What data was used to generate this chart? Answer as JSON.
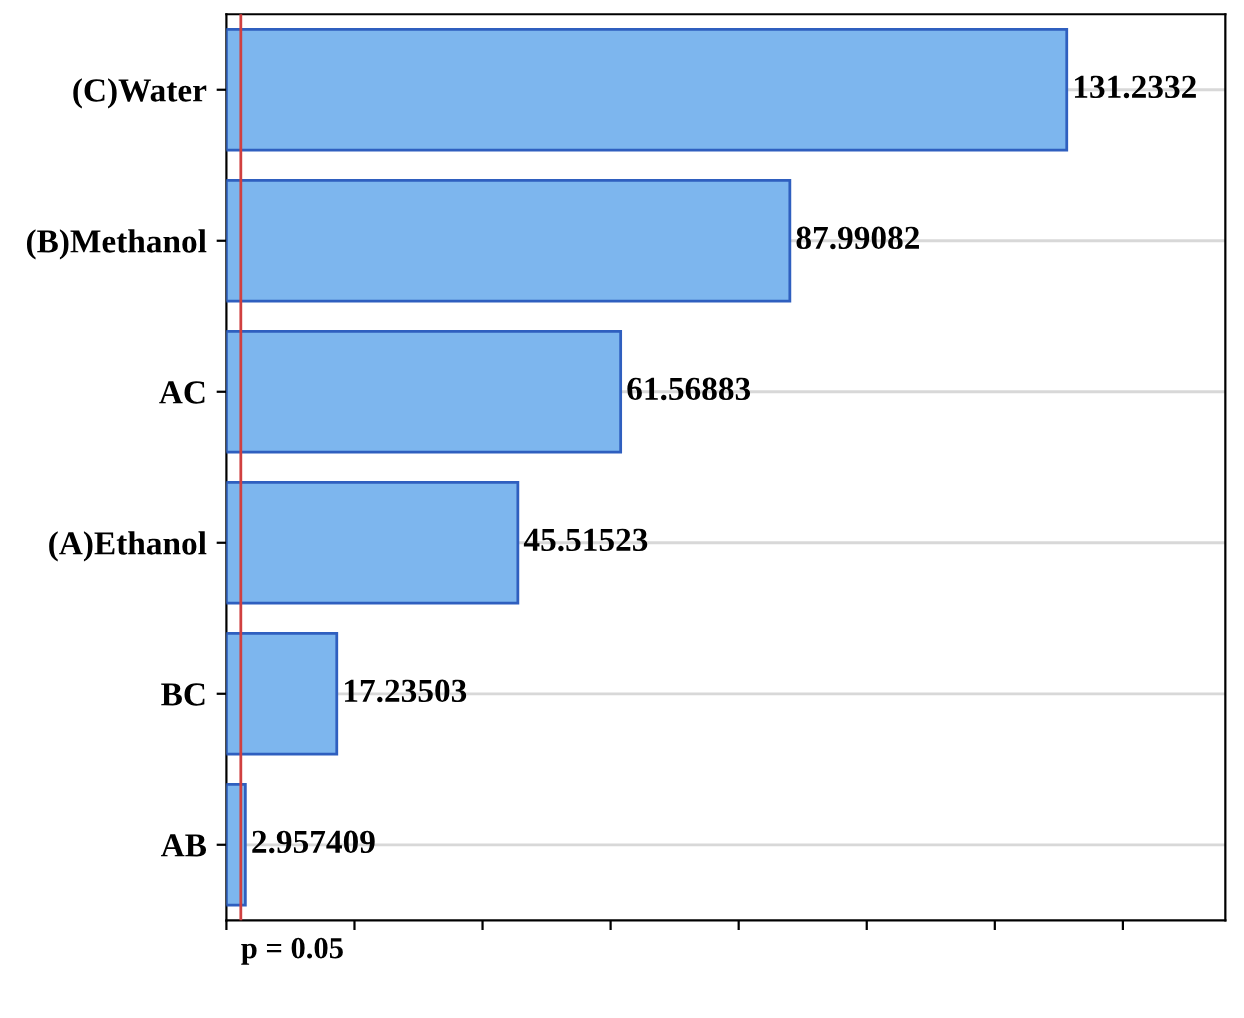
{
  "chart_data": {
    "type": "bar",
    "orientation": "horizontal",
    "categories": [
      "(C)Water",
      "(B)Methanol",
      "AC",
      "(A)Ethanol",
      "BC",
      "AB"
    ],
    "values": [
      131.2332,
      87.99082,
      61.56883,
      45.51523,
      17.23503,
      2.957409
    ],
    "color": "#7db6ee",
    "xlim": [
      0,
      156
    ],
    "xticks": [
      {
        "value": 0,
        "label": null
      },
      {
        "value": 20,
        "label": null
      },
      {
        "value": 40,
        "label": null
      },
      {
        "value": 60,
        "label": null
      },
      {
        "value": 80,
        "label": null
      },
      {
        "value": 100,
        "label": null
      },
      {
        "value": 120,
        "label": null
      },
      {
        "value": 140,
        "label": null
      }
    ],
    "tick_labels": "y",
    "data_labels": true,
    "grid": "y",
    "ref_lines": [
      {
        "axis": "x",
        "value": 2.25,
        "color": "#d04040"
      }
    ],
    "annotations": [
      "p = 0.05"
    ]
  }
}
